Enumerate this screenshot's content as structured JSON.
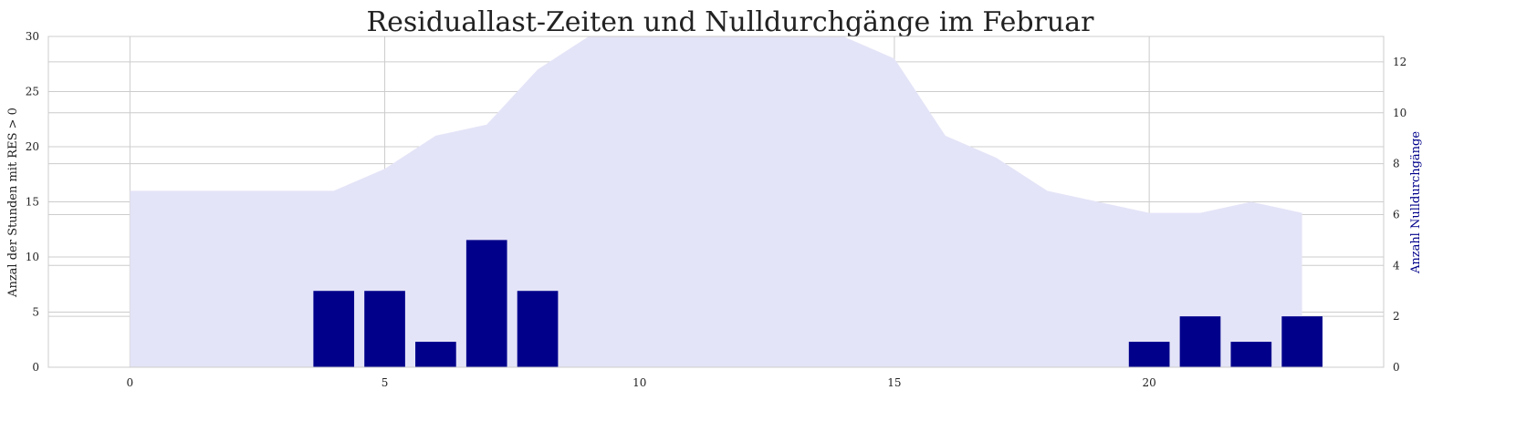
{
  "chart_data": {
    "type": "bar",
    "title": "Residuallast-Zeiten und Nulldurchgänge im Februar",
    "xlabel": "",
    "x_ticks": [
      "0",
      "5",
      "10",
      "15",
      "20"
    ],
    "x_tick_values": [
      0,
      5,
      10,
      15,
      20
    ],
    "xlim": [
      -1.6,
      24.6
    ],
    "ylabel_left": "Anzal der Stunden mit RES > 0",
    "ylabel_right": "Anzahl Nulldurchgänge",
    "ylim_left": [
      0,
      30
    ],
    "ylim_right": [
      0,
      13
    ],
    "y_ticks_left": [
      "0",
      "5",
      "10",
      "15",
      "20",
      "25",
      "30"
    ],
    "y_tick_values_left": [
      0,
      5,
      10,
      15,
      20,
      25,
      30
    ],
    "y_ticks_right": [
      "0",
      "2",
      "4",
      "6",
      "8",
      "10",
      "12"
    ],
    "y_tick_values_right": [
      0,
      2,
      4,
      6,
      8,
      10,
      12
    ],
    "grid": true,
    "series": [
      {
        "kind": "area",
        "axis": "left",
        "color": "#e4e4f8",
        "x": [
          0,
          1,
          2,
          3,
          4,
          5,
          6,
          7,
          8,
          9,
          10,
          11,
          12,
          13,
          14,
          15,
          16,
          17,
          18,
          19,
          20,
          21,
          22,
          23
        ],
        "values": [
          16,
          16,
          16,
          16,
          16,
          18,
          21,
          22,
          27,
          30,
          31,
          32,
          32,
          31,
          30,
          28,
          21,
          19,
          16,
          15,
          14,
          14,
          15,
          14
        ]
      },
      {
        "kind": "bar",
        "axis": "right",
        "color": "#00008b",
        "x": [
          0,
          1,
          2,
          3,
          4,
          5,
          6,
          7,
          8,
          9,
          10,
          11,
          12,
          13,
          14,
          15,
          16,
          17,
          18,
          19,
          20,
          21,
          22,
          23
        ],
        "values": [
          0,
          0,
          0,
          0,
          3,
          3,
          1,
          5,
          3,
          0,
          0,
          0,
          0,
          0,
          0,
          0,
          0,
          0,
          0,
          0,
          1,
          2,
          1,
          2
        ]
      }
    ]
  }
}
